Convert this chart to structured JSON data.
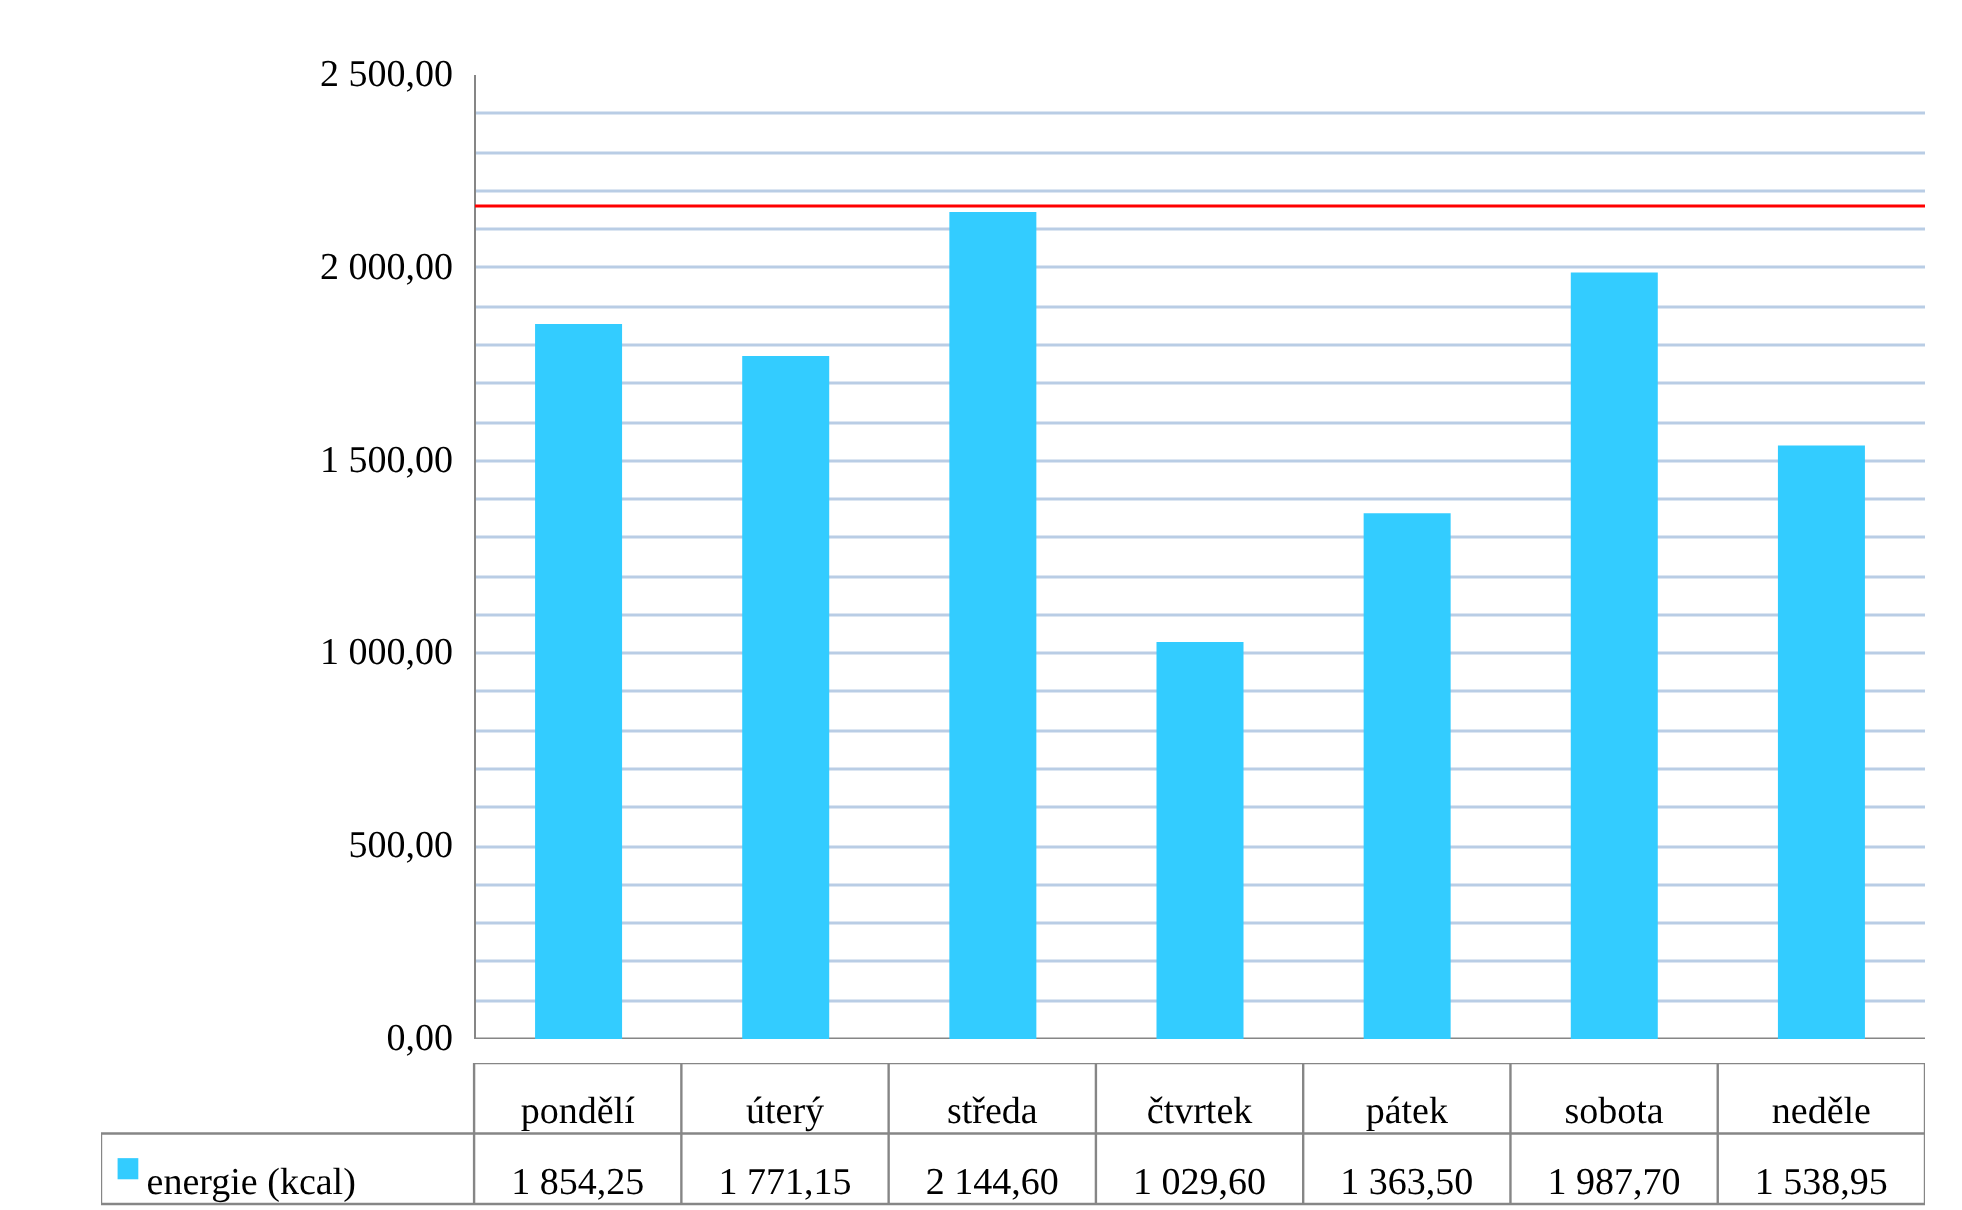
{
  "chart_data": {
    "type": "bar",
    "categories": [
      "pondělí",
      "úterý",
      "středa",
      "čtvrtek",
      "pátek",
      "sobota",
      "neděle"
    ],
    "series": [
      {
        "name": "energie (kcal)",
        "color": "#33ccff",
        "values": [
          1854.25,
          1771.15,
          2144.6,
          1029.6,
          1363.5,
          1987.7,
          1538.95
        ],
        "value_labels": [
          "1 854,25",
          "1 771,15",
          "2 144,60",
          "1 029,60",
          "1 363,50",
          "1 987,70",
          "1 538,95"
        ]
      }
    ],
    "ylim": [
      0,
      2500
    ],
    "yticks": [
      {
        "value": 0,
        "label": "0,00"
      },
      {
        "value": 100,
        "label": null
      },
      {
        "value": 200,
        "label": null
      },
      {
        "value": 300,
        "label": null
      },
      {
        "value": 400,
        "label": null
      },
      {
        "value": 500,
        "label": "500,00"
      },
      {
        "value": 600,
        "label": null
      },
      {
        "value": 700,
        "label": null
      },
      {
        "value": 800,
        "label": null
      },
      {
        "value": 900,
        "label": null
      },
      {
        "value": 1000,
        "label": "1 000,00"
      },
      {
        "value": 1100,
        "label": null
      },
      {
        "value": 1200,
        "label": null
      },
      {
        "value": 1300,
        "label": null
      },
      {
        "value": 1400,
        "label": null
      },
      {
        "value": 1500,
        "label": "1 500,00"
      },
      {
        "value": 1600,
        "label": null
      },
      {
        "value": 1700,
        "label": null
      },
      {
        "value": 1800,
        "label": null
      },
      {
        "value": 1900,
        "label": null
      },
      {
        "value": 2000,
        "label": "2 000,00"
      },
      {
        "value": 2100,
        "label": null
      },
      {
        "value": 2200,
        "label": null
      },
      {
        "value": 2300,
        "label": null
      },
      {
        "value": 2400,
        "label": null
      },
      {
        "value": 2500,
        "label": "2 500,00"
      }
    ],
    "ref_lines": [
      {
        "axis": "y",
        "value": 2160,
        "color": "#ff0000"
      }
    ],
    "grid": "y",
    "legend": "bottom left"
  }
}
